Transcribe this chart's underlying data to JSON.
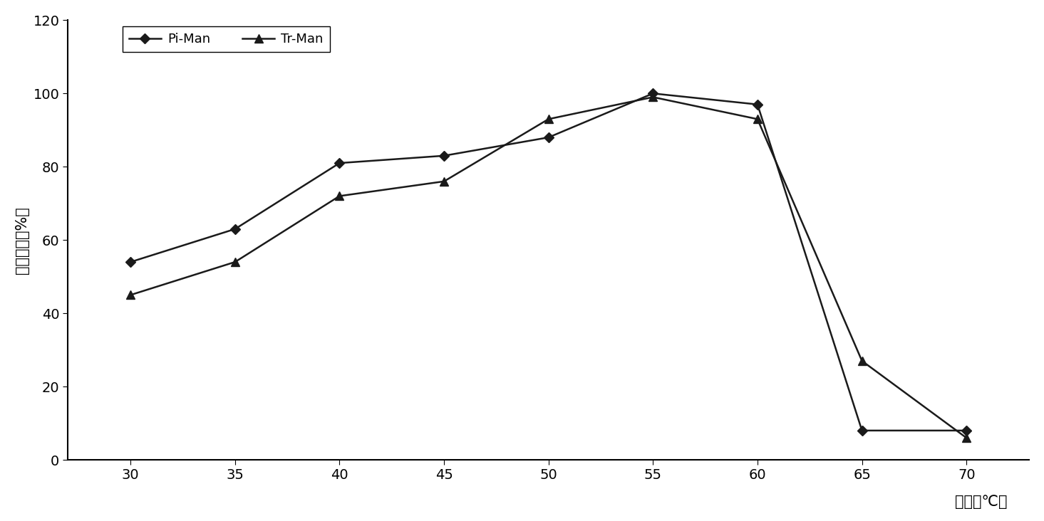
{
  "x": [
    30,
    35,
    40,
    45,
    50,
    55,
    60,
    65,
    70
  ],
  "pi_man": [
    54,
    63,
    81,
    83,
    88,
    100,
    97,
    8,
    8
  ],
  "tr_man": [
    45,
    54,
    72,
    76,
    93,
    99,
    93,
    27,
    6
  ],
  "xlabel": "温度（℃）",
  "ylabel": "相对酶活（%）",
  "ylim": [
    0,
    120
  ],
  "xlim": [
    27,
    73
  ],
  "yticks": [
    0,
    20,
    40,
    60,
    80,
    100,
    120
  ],
  "xticks": [
    30,
    35,
    40,
    45,
    50,
    55,
    60,
    65,
    70
  ],
  "legend_pi": "Pi-Man",
  "legend_tr": "Tr-Man",
  "line_color": "#1a1a1a",
  "bg_color": "#ffffff"
}
